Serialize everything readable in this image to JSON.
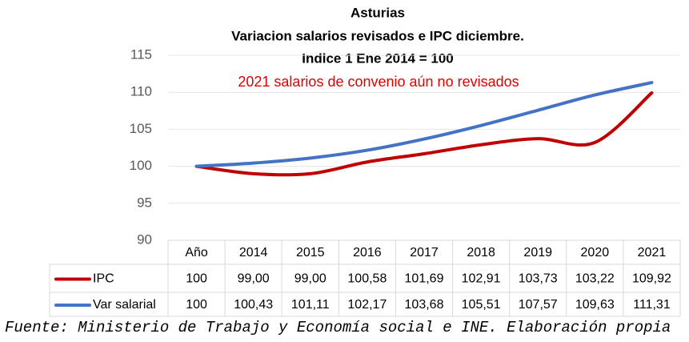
{
  "chart_data": {
    "type": "line",
    "title": [
      "Asturias",
      "Variacion salarios revisados e IPC diciembre.",
      "Indice 1 Ene 2014 = 100"
    ],
    "annotation": "2021 salarios de convenio aún no revisados",
    "source": "Fuente: Ministerio de Trabajo y Economía social e INE. Elaboración propia",
    "categories": [
      "Año",
      "2014",
      "2015",
      "2016",
      "2017",
      "2018",
      "2019",
      "2020",
      "2021"
    ],
    "series": [
      {
        "name": "IPC",
        "color": "#c00000",
        "values": [
          100,
          99.0,
          99.0,
          100.58,
          101.69,
          102.91,
          103.73,
          103.22,
          109.92
        ],
        "value_labels": [
          "100",
          "99,00",
          "99,00",
          "100,58",
          "101,69",
          "102,91",
          "103,73",
          "103,22",
          "109,92"
        ]
      },
      {
        "name": "Var salarial",
        "color": "#4472c4",
        "values": [
          100,
          100.43,
          101.11,
          102.17,
          103.68,
          105.51,
          107.57,
          109.63,
          111.31
        ],
        "value_labels": [
          "100",
          "100,43",
          "101,11",
          "102,17",
          "103,68",
          "105,51",
          "107,57",
          "109,63",
          "111,31"
        ]
      }
    ],
    "ylim": [
      90,
      115
    ],
    "yticks": [
      90,
      95,
      100,
      105,
      110,
      115
    ],
    "grid": true
  }
}
